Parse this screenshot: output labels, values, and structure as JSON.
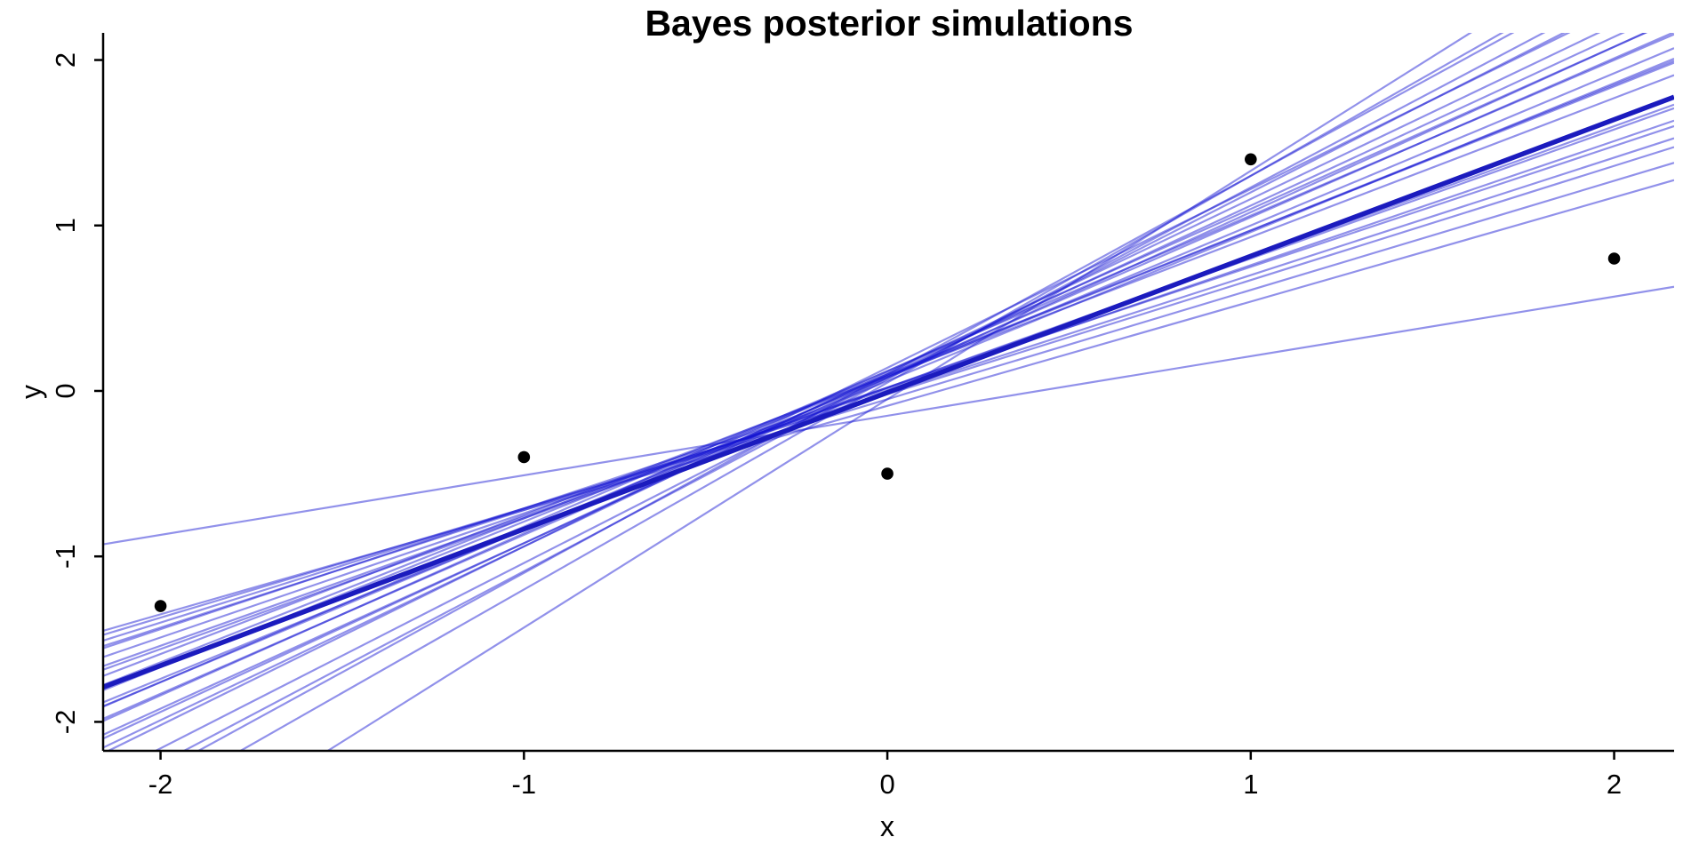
{
  "chart_data": {
    "type": "scatter",
    "title": "Bayes posterior simulations",
    "xlabel": "x",
    "ylabel": "y",
    "grid": false,
    "legend": "none",
    "axis_style": "L-shaped, left and bottom axes only, ticks outside",
    "x_ticks": [
      -2,
      -1,
      0,
      1,
      2
    ],
    "y_ticks": [
      -2,
      -1,
      0,
      1,
      2
    ],
    "xlim": [
      -2.158,
      2.165
    ],
    "ylim": [
      -2.175,
      2.164
    ],
    "points": {
      "x": [
        -2,
        -1,
        0,
        1,
        2
      ],
      "y": [
        -1.3,
        -0.4,
        -0.5,
        1.4,
        0.8
      ]
    },
    "posterior_draws_note": "straight lines y = a + b*x, values estimated from pixel positions",
    "posterior_draws": [
      {
        "a": -0.15,
        "b": 0.36
      },
      {
        "a": -0.09,
        "b": 0.63
      },
      {
        "a": -0.05,
        "b": 0.66
      },
      {
        "a": -0.02,
        "b": 0.69
      },
      {
        "a": -0.01,
        "b": 0.71
      },
      {
        "a": 0.02,
        "b": 0.73
      },
      {
        "a": 0.01,
        "b": 0.75
      },
      {
        "a": 0.02,
        "b": 0.78
      },
      {
        "a": 0.02,
        "b": 0.79
      },
      {
        "a": 0.09,
        "b": 0.84
      },
      {
        "a": 0.1,
        "b": 0.87
      },
      {
        "a": 0.09,
        "b": 0.88
      },
      {
        "a": 0.06,
        "b": 0.9
      },
      {
        "a": 0.08,
        "b": 0.92
      },
      {
        "a": 0.12,
        "b": 0.94
      },
      {
        "a": 0.09,
        "b": 0.96
      },
      {
        "a": 0.12,
        "b": 0.98
      },
      {
        "a": 0.08,
        "b": 1.0
      },
      {
        "a": 0.1,
        "b": 1.02
      },
      {
        "a": 0.11,
        "b": 1.05
      },
      {
        "a": 0.14,
        "b": 1.08
      },
      {
        "a": 0.08,
        "b": 1.12
      },
      {
        "a": 0.07,
        "b": 1.16
      },
      {
        "a": 0.1,
        "b": 1.2
      },
      {
        "a": 0.05,
        "b": 1.25
      },
      {
        "a": -0.05,
        "b": 1.38
      }
    ],
    "posterior_median_line": {
      "a": -0.01,
      "b": 0.825
    }
  },
  "colors": {
    "background": "#ffffff",
    "draw_line": "rgba(22,22,210,0.47)",
    "median_line": "#1b1bbe",
    "point": "#000000",
    "axis": "#000000",
    "text": "#000000"
  },
  "style": {
    "draw_line_width": 2.2,
    "median_line_width": 5.5,
    "point_radius": 6.8,
    "axis_line_width": 2.5,
    "tick_length": 10
  }
}
